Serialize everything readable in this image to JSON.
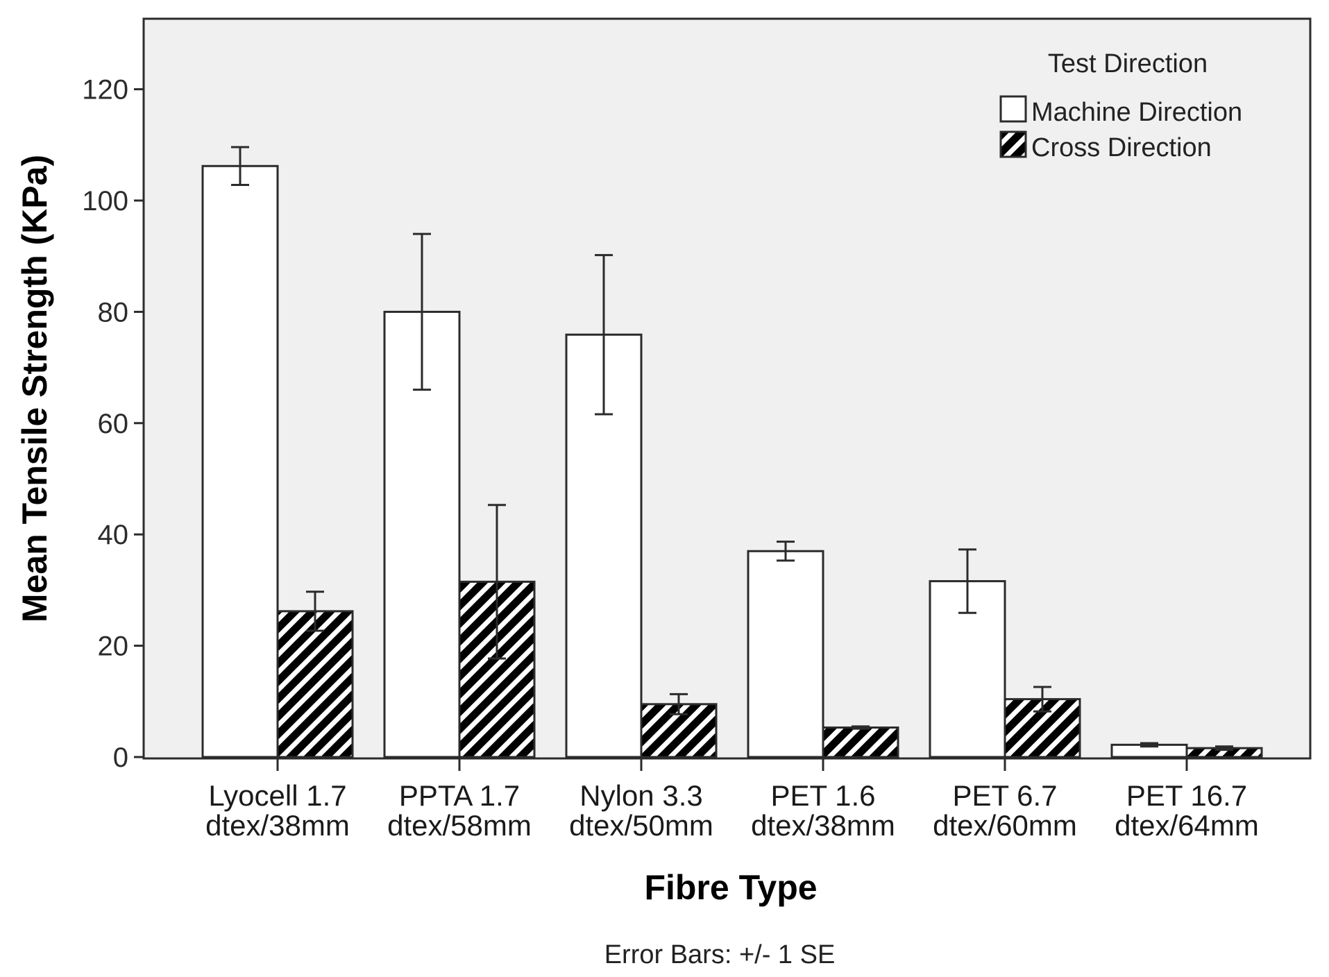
{
  "chart_data": {
    "type": "bar",
    "xlabel": "Fibre Type",
    "ylabel": "Mean Tensile Strength (KPa)",
    "ylim": [
      0,
      134
    ],
    "yticks": [
      0,
      20,
      40,
      60,
      80,
      100,
      120
    ],
    "categories": [
      [
        "Lyocell 1.7",
        "dtex/38mm"
      ],
      [
        "PPTA 1.7",
        "dtex/58mm"
      ],
      [
        "Nylon 3.3",
        "dtex/50mm"
      ],
      [
        "PET 1.6",
        "dtex/38mm"
      ],
      [
        "PET 6.7",
        "dtex/60mm"
      ],
      [
        "PET 16.7",
        "dtex/64mm"
      ]
    ],
    "legend": {
      "title": "Test Direction",
      "position": "top-right"
    },
    "series": [
      {
        "name": "Machine Direction",
        "fill": "#ffffff",
        "pattern": "none",
        "values": [
          106.2,
          80.0,
          75.9,
          37.0,
          31.6,
          2.2
        ],
        "se": [
          3.4,
          14.0,
          14.3,
          1.7,
          5.7,
          0.3
        ]
      },
      {
        "name": "Cross Direction",
        "fill": "#000000",
        "pattern": "diagonal-hatch",
        "values": [
          26.2,
          31.5,
          9.5,
          5.3,
          10.4,
          1.6
        ],
        "se": [
          3.5,
          13.8,
          1.8,
          0.2,
          2.2,
          0.3
        ]
      }
    ],
    "footnote": "Error Bars: +/- 1 SE"
  },
  "colors": {
    "plot_background": "#f0f0f0",
    "axis": "#2b2b2b"
  }
}
